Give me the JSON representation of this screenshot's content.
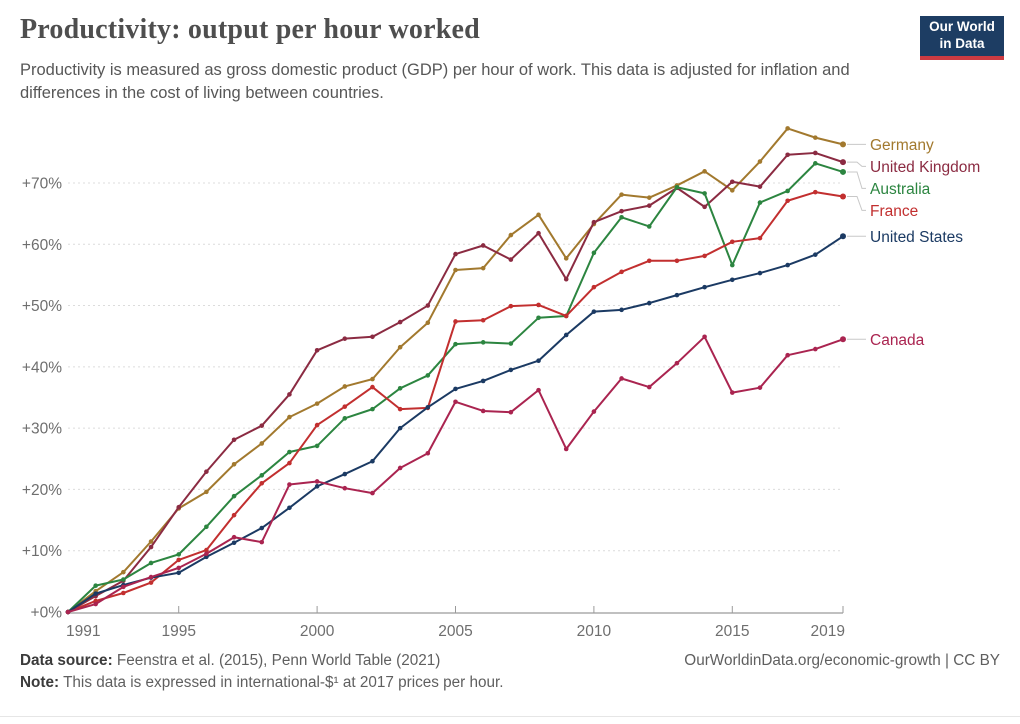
{
  "header": {
    "title": "Productivity: output per hour worked",
    "subtitle": "Productivity is measured as gross domestic product (GDP) per hour of work. This data is adjusted for inflation and differences in the cost of living between countries.",
    "logo": {
      "line1": "Our World",
      "line2": "in Data",
      "bg": "#1d3d63",
      "accent": "#cc3b42"
    }
  },
  "chart_data": {
    "type": "line",
    "title": "Productivity: output per hour worked",
    "xlabel": "",
    "ylabel": "",
    "x": [
      1991,
      1992,
      1993,
      1994,
      1995,
      1996,
      1997,
      1998,
      1999,
      2000,
      2001,
      2002,
      2003,
      2004,
      2005,
      2006,
      2007,
      2008,
      2009,
      2010,
      2011,
      2012,
      2013,
      2014,
      2015,
      2016,
      2017,
      2018,
      2019
    ],
    "x_ticks": [
      1991,
      1995,
      2000,
      2005,
      2010,
      2015,
      2019
    ],
    "y_ticks": [
      0,
      10,
      20,
      30,
      40,
      50,
      60,
      70
    ],
    "y_tick_prefix": "+",
    "y_tick_suffix": "%",
    "ylim": [
      0,
      80
    ],
    "grid": true,
    "legend_position": "right",
    "series": [
      {
        "name": "Germany",
        "color": "#a2792e",
        "values": [
          0,
          3.4,
          6.5,
          11.5,
          16.9,
          19.6,
          24.1,
          27.5,
          31.8,
          34.0,
          36.8,
          38.0,
          43.2,
          47.2,
          55.8,
          56.1,
          61.5,
          64.8,
          57.7,
          63.3,
          68.1,
          67.6,
          69.6,
          71.9,
          68.8,
          73.5,
          78.9,
          77.4,
          76.3
        ]
      },
      {
        "name": "United Kingdom",
        "color": "#8b2b42",
        "values": [
          0,
          2.6,
          5.1,
          10.6,
          17.1,
          22.9,
          28.1,
          30.4,
          35.5,
          42.7,
          44.6,
          44.9,
          47.3,
          50.0,
          58.4,
          59.8,
          57.5,
          61.8,
          54.3,
          63.6,
          65.4,
          66.3,
          69.2,
          66.1,
          70.2,
          69.4,
          74.6,
          74.9,
          73.4
        ]
      },
      {
        "name": "Australia",
        "color": "#2c8540",
        "values": [
          0,
          4.3,
          5.3,
          8.0,
          9.4,
          13.9,
          18.9,
          22.3,
          26.1,
          27.1,
          31.6,
          33.1,
          36.5,
          38.6,
          43.7,
          44.0,
          43.8,
          48.0,
          48.3,
          58.6,
          64.4,
          62.9,
          69.3,
          68.3,
          56.6,
          66.8,
          68.7,
          73.2,
          71.8
        ]
      },
      {
        "name": "France",
        "color": "#c22f2f",
        "values": [
          0,
          1.8,
          3.1,
          4.8,
          8.5,
          10.1,
          15.8,
          21.0,
          24.3,
          30.5,
          33.5,
          36.7,
          33.1,
          33.3,
          47.4,
          47.6,
          49.9,
          50.1,
          48.3,
          53.0,
          55.5,
          57.3,
          57.3,
          58.1,
          60.4,
          61.0,
          67.1,
          68.5,
          67.8
        ]
      },
      {
        "name": "United States",
        "color": "#1b3a63",
        "values": [
          0,
          3.0,
          4.4,
          5.6,
          6.4,
          9.0,
          11.3,
          13.7,
          17.0,
          20.5,
          22.5,
          24.6,
          30.0,
          33.4,
          36.4,
          37.7,
          39.5,
          41.0,
          45.2,
          49.0,
          49.3,
          50.4,
          51.7,
          53.0,
          54.2,
          55.3,
          56.6,
          58.3,
          61.3
        ]
      },
      {
        "name": "Canada",
        "color": "#aa2450",
        "values": [
          0,
          1.3,
          4.1,
          5.7,
          7.2,
          9.5,
          12.2,
          11.4,
          20.8,
          21.3,
          20.2,
          19.4,
          23.5,
          25.9,
          34.3,
          32.8,
          32.6,
          36.2,
          26.6,
          32.7,
          38.1,
          36.7,
          40.6,
          44.9,
          35.8,
          36.6,
          41.9,
          42.9,
          44.5
        ]
      }
    ]
  },
  "footer": {
    "source_label": "Data source:",
    "source_text": "Feenstra et al. (2015), Penn World Table (2021)",
    "note_label": "Note:",
    "note_text": "This data is expressed in international-$¹ at 2017 prices per hour.",
    "link": "OurWorldinData.org/economic-growth | CC BY"
  }
}
